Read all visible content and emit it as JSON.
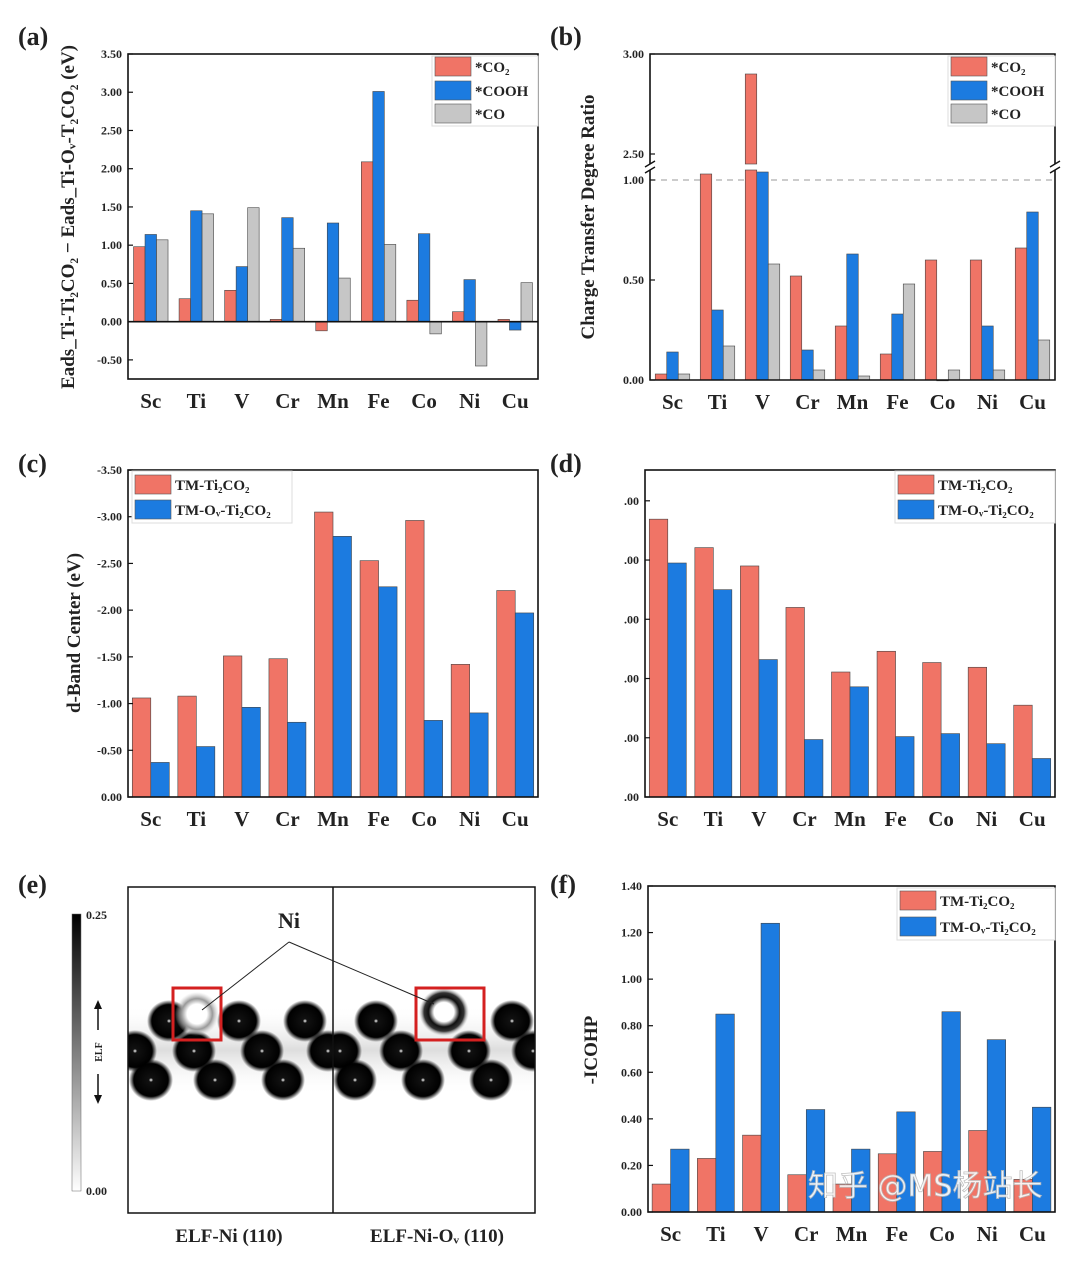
{
  "chart_data": [
    {
      "panel": "(a)",
      "type": "bar",
      "categories": [
        "Sc",
        "Ti",
        "V",
        "Cr",
        "Mn",
        "Fe",
        "Co",
        "Ni",
        "Cu"
      ],
      "ylabel": "Eads_Ti-Ti₂CO₂ − Eads_Ti-Oᵥ-T₂CO₂ (eV)",
      "ylim": [
        -0.75,
        3.5
      ],
      "yticks": [
        {
          "value": -0.5,
          "label": "-0.50"
        },
        {
          "value": 0,
          "label": "0.00"
        },
        {
          "value": 0.5,
          "label": "0.50"
        },
        {
          "value": 1,
          "label": "1.00"
        },
        {
          "value": 1.5,
          "label": "1.50"
        },
        {
          "value": 2,
          "label": "2.00"
        },
        {
          "value": 2.5,
          "label": "2.50"
        },
        {
          "value": 3,
          "label": "3.00"
        },
        {
          "value": 3.5,
          "label": "3.50"
        }
      ],
      "zero_line": true,
      "legend": "top-right",
      "series": [
        {
          "name": "*CO₂",
          "color": "#F07466",
          "values": [
            0.98,
            0.3,
            0.41,
            0.03,
            -0.12,
            2.09,
            0.28,
            0.13,
            0.03
          ]
        },
        {
          "name": "*COOH",
          "color": "#1C7BE0",
          "values": [
            1.14,
            1.45,
            0.72,
            1.36,
            1.29,
            3.01,
            1.15,
            0.55,
            -0.11
          ]
        },
        {
          "name": "*CO",
          "color": "#C6C6C6",
          "values": [
            1.07,
            1.41,
            1.49,
            0.96,
            0.57,
            1.01,
            -0.16,
            -0.58,
            0.51
          ]
        }
      ]
    },
    {
      "panel": "(b)",
      "type": "bar",
      "categories": [
        "Sc",
        "Ti",
        "V",
        "Cr",
        "Mn",
        "Fe",
        "Co",
        "Ni",
        "Cu"
      ],
      "ylabel": "Charge Transfer Degree Ratio",
      "ylim": [
        0,
        3.0
      ],
      "axis_break": [
        1.05,
        2.45
      ],
      "reference_line": 1.0,
      "yticks": [
        {
          "value": 0,
          "label": "0.00"
        },
        {
          "value": 0.5,
          "label": "0.50"
        },
        {
          "value": 1,
          "label": "1.00"
        },
        {
          "value": 2.5,
          "label": "2.50"
        },
        {
          "value": 3,
          "label": "3.00"
        }
      ],
      "legend": "top-right",
      "series": [
        {
          "name": "*CO₂",
          "color": "#F07466",
          "values": [
            0.03,
            1.03,
            2.9,
            0.52,
            0.27,
            0.13,
            0.6,
            0.6,
            0.66
          ]
        },
        {
          "name": "*COOH",
          "color": "#1C7BE0",
          "values": [
            0.14,
            0.35,
            1.04,
            0.15,
            0.63,
            0.33,
            0.0,
            0.27,
            0.84
          ]
        },
        {
          "name": "*CO",
          "color": "#C6C6C6",
          "values": [
            0.03,
            0.17,
            0.58,
            0.05,
            0.02,
            0.48,
            0.05,
            0.05,
            0.2
          ]
        }
      ]
    },
    {
      "panel": "(c)",
      "type": "bar",
      "categories": [
        "Sc",
        "Ti",
        "V",
        "Cr",
        "Mn",
        "Fe",
        "Co",
        "Ni",
        "Cu"
      ],
      "ylabel": "d-Band Center (eV)",
      "ylim": [
        0,
        -3.5
      ],
      "yticks": [
        {
          "value": 0,
          "label": "0.00"
        },
        {
          "value": -0.5,
          "label": "-0.50"
        },
        {
          "value": -1,
          "label": "-1.00"
        },
        {
          "value": -1.5,
          "label": "-1.50"
        },
        {
          "value": -2,
          "label": "-2.00"
        },
        {
          "value": -2.5,
          "label": "-2.50"
        },
        {
          "value": -3,
          "label": "-3.00"
        },
        {
          "value": -3.5,
          "label": "-3.50"
        }
      ],
      "legend": "top-left",
      "series": [
        {
          "name": "TM-Ti₂CO₂",
          "color": "#F07466",
          "values": [
            -1.06,
            -1.08,
            -1.51,
            -1.48,
            -3.05,
            -2.53,
            -2.96,
            -1.42,
            -2.21
          ]
        },
        {
          "name": "TM-Oᵥ-Ti₂CO₂",
          "color": "#1C7BE0",
          "values": [
            -0.37,
            -0.54,
            -0.96,
            -0.8,
            -2.79,
            -2.25,
            -0.82,
            -0.9,
            -1.97
          ]
        }
      ]
    },
    {
      "panel": "(d)",
      "type": "bar",
      "categories": [
        "Sc",
        "Ti",
        "V",
        "Cr",
        "Mn",
        "Fe",
        "Co",
        "Ni",
        "Cu"
      ],
      "ylabel": "",
      "ylim": [
        0,
        5.52
      ],
      "yticks": [
        {
          "value": 0,
          "label": ".00"
        },
        {
          "value": 1,
          "label": ".00"
        },
        {
          "value": 2,
          "label": ".00"
        },
        {
          "value": 3,
          "label": ".00"
        },
        {
          "value": 4,
          "label": ".00"
        },
        {
          "value": 5,
          "label": ".00"
        }
      ],
      "legend": "top-right",
      "series": [
        {
          "name": "TM-Ti₂CO₂",
          "color": "#F07466",
          "values": [
            4.69,
            4.21,
            3.9,
            3.2,
            2.11,
            2.46,
            2.27,
            2.19,
            1.55
          ]
        },
        {
          "name": "TM-Oᵥ-Ti₂CO₂",
          "color": "#1C7BE0",
          "values": [
            3.95,
            3.5,
            2.32,
            0.97,
            1.86,
            1.02,
            1.07,
            0.9,
            0.65
          ]
        }
      ]
    },
    {
      "panel": "(f)",
      "type": "bar",
      "categories": [
        "Sc",
        "Ti",
        "V",
        "Cr",
        "Mn",
        "Fe",
        "Co",
        "Ni",
        "Cu"
      ],
      "ylabel": "-ICOHP",
      "ylim": [
        0,
        1.4
      ],
      "yticks": [
        {
          "value": 0,
          "label": "0.00"
        },
        {
          "value": 0.2,
          "label": "0.20"
        },
        {
          "value": 0.4,
          "label": "0.40"
        },
        {
          "value": 0.6,
          "label": "0.60"
        },
        {
          "value": 0.8,
          "label": "0.80"
        },
        {
          "value": 1.0,
          "label": "1.00"
        },
        {
          "value": 1.2,
          "label": "1.20"
        },
        {
          "value": 1.4,
          "label": "1.40"
        }
      ],
      "legend": "top-right",
      "series": [
        {
          "name": "TM-Ti₂CO₂",
          "color": "#F07466",
          "values": [
            0.12,
            0.23,
            0.33,
            0.16,
            0.12,
            0.25,
            0.26,
            0.35,
            0.14
          ]
        },
        {
          "name": "TM-Oᵥ-Ti₂CO₂",
          "color": "#1C7BE0",
          "values": [
            0.27,
            0.85,
            1.24,
            0.44,
            0.27,
            0.43,
            0.86,
            0.74,
            0.45
          ]
        }
      ]
    }
  ],
  "elf_panel": {
    "panel": "(e)",
    "annotation": "Ni",
    "colorbar_label": "ELF",
    "colorbar_max": "0.25",
    "colorbar_min": "0.00",
    "left_title": "ELF-Ni (110)",
    "right_title": "ELF-Ni-Oᵥ (110)",
    "highlight_color": "#D42020"
  },
  "watermark": "知乎 @MS杨站长"
}
